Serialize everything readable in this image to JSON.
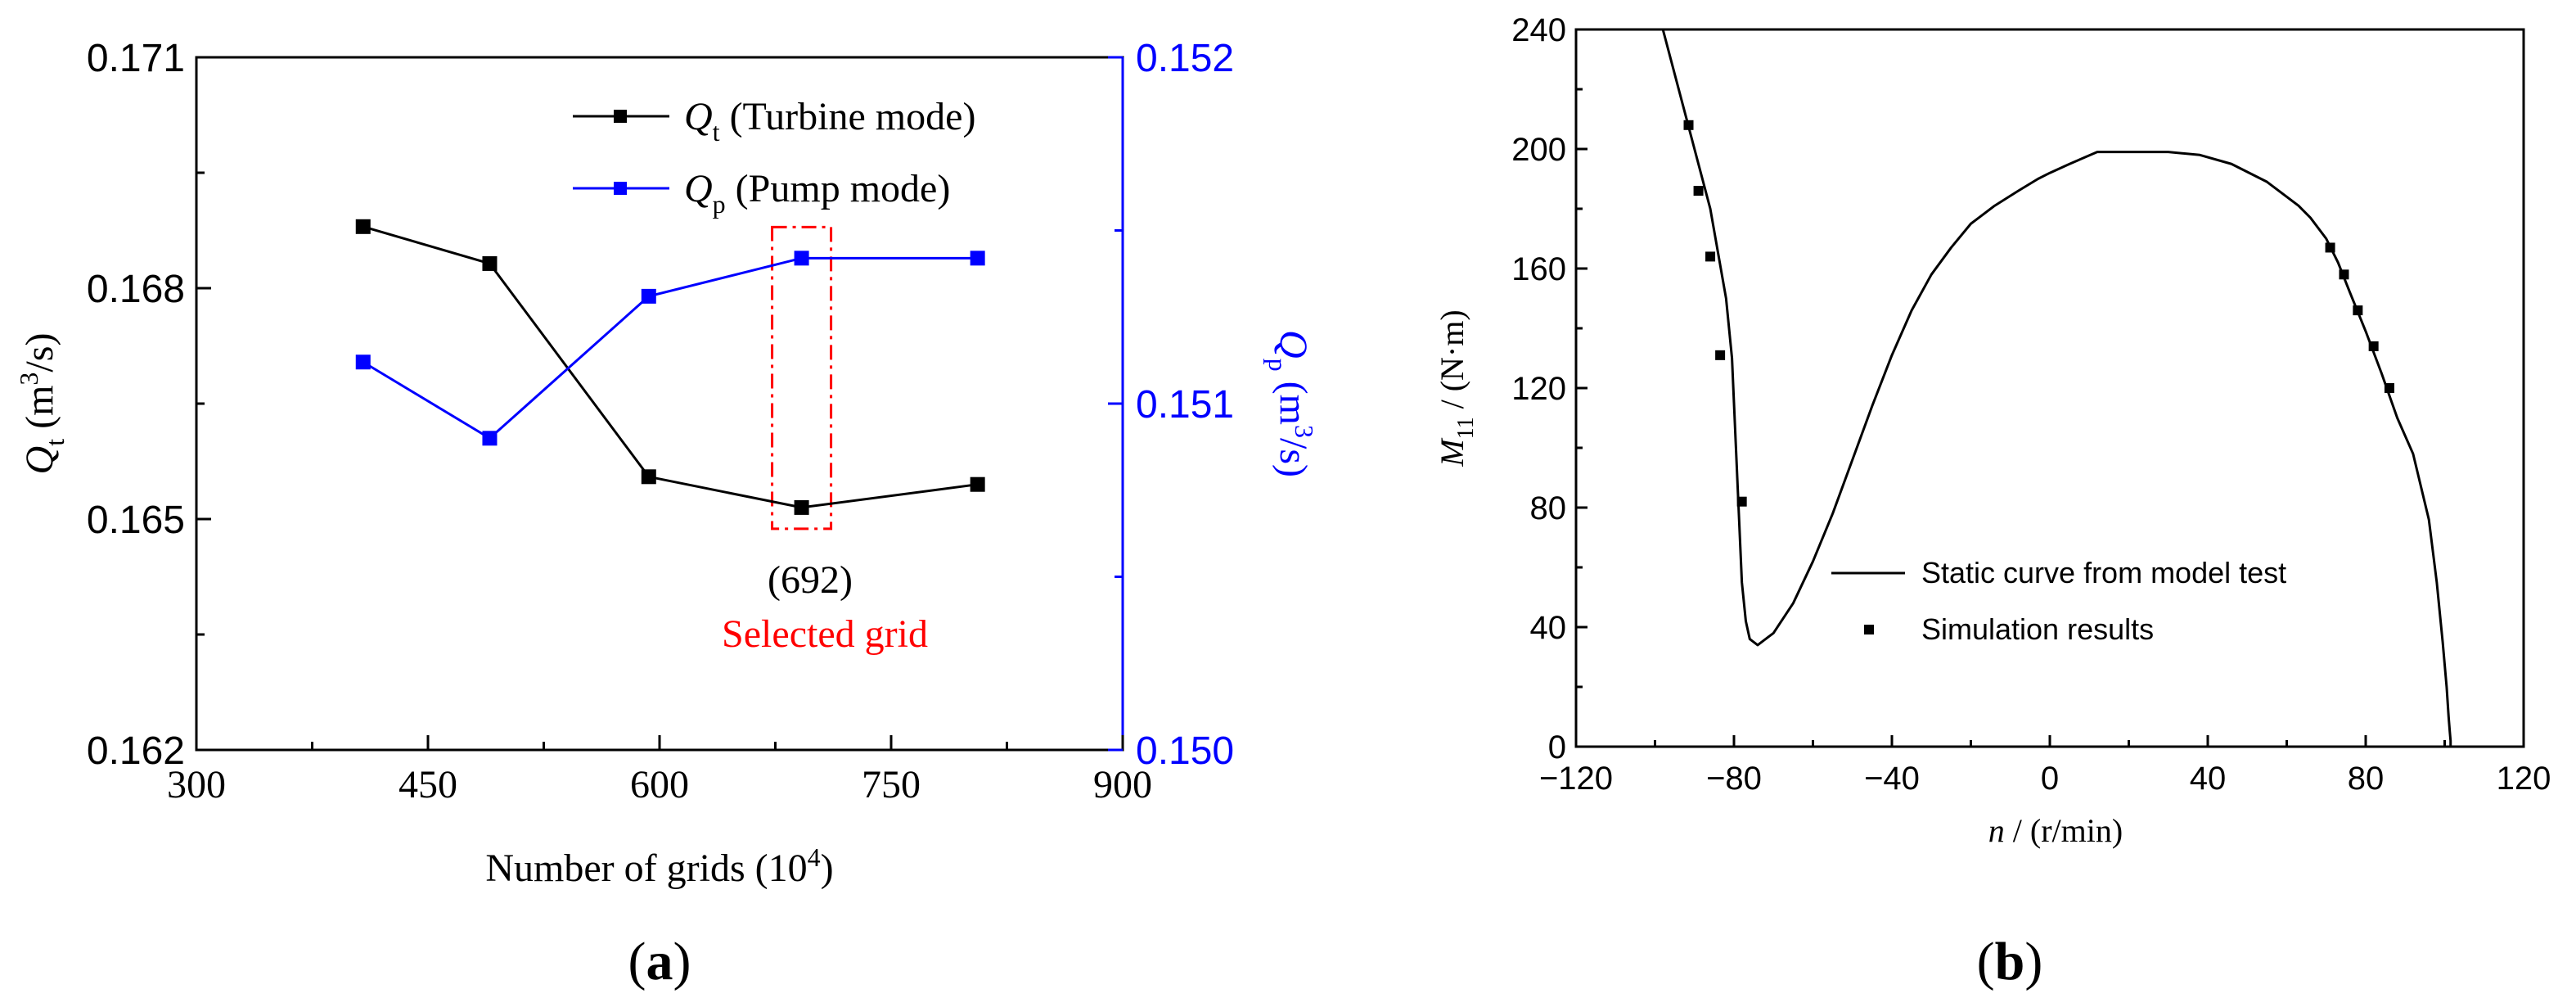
{
  "figure": {
    "panel_a_label": "a",
    "panel_b_label": "b"
  },
  "chart_data": [
    {
      "type": "line",
      "panel": "a",
      "xlabel": "Number of grids (10^4)",
      "xlabel_parts": {
        "main": "Number of grids (10",
        "sup": "4",
        "end": ")"
      },
      "xlim": [
        300,
        900
      ],
      "xticks": [
        300,
        450,
        600,
        750,
        900
      ],
      "ylabel_left": "Qt (m3/s)",
      "ylabel_left_parts": {
        "sym": "Q",
        "sub": "t",
        "unit_pre": " (m",
        "sup": "3",
        "unit_post": "/s)"
      },
      "ylim_left": [
        0.162,
        0.171
      ],
      "yticks_left": [
        "0.162",
        "0.165",
        "0.168",
        "0.171"
      ],
      "ylabel_right": "Qp (m3/s)",
      "ylabel_right_parts": {
        "sym": "Q",
        "sub": "p",
        "unit_pre": " (m",
        "sup": "3",
        "unit_post": "/s)"
      },
      "ylim_right": [
        0.15,
        0.152
      ],
      "yticks_right": [
        "0.150",
        "0.151",
        "0.152"
      ],
      "x": [
        408,
        490,
        593,
        692,
        806
      ],
      "series": [
        {
          "name": "Qt (Turbine mode)",
          "legend_sym": "Q",
          "legend_sub": "t",
          "legend_text": " (Turbine mode)",
          "axis": "left",
          "color": "#000000",
          "values": [
            0.1688,
            0.16832,
            0.16555,
            0.16515,
            0.16545
          ]
        },
        {
          "name": "Qp (Pump mode)",
          "legend_sym": "Q",
          "legend_sub": "p",
          "legend_text": " (Pump mode)",
          "axis": "right",
          "color": "#0000ff",
          "values": [
            0.15112,
            0.1509,
            0.15131,
            0.15142,
            0.15142
          ]
        }
      ],
      "annotations": {
        "highlight_x": 692,
        "value_label": "(692)",
        "selected_label": "Selected grid",
        "highlight_color": "#ff0000"
      }
    },
    {
      "type": "line",
      "panel": "b",
      "xlabel": "n / (r/min)",
      "xlabel_parts": {
        "sym": "n",
        "rest": " / (r/min)"
      },
      "ylabel": "M11 / (N·m)",
      "ylabel_parts": {
        "sym": "M",
        "sub": "11",
        "rest": " / (N·m)"
      },
      "xlim": [
        -120,
        120
      ],
      "ylim": [
        0,
        240
      ],
      "xticks": [
        "−120",
        "−80",
        "−40",
        "0",
        "40",
        "80",
        "120"
      ],
      "yticks": [
        "0",
        "40",
        "80",
        "120",
        "160",
        "200",
        "240"
      ],
      "series": [
        {
          "name": "Static curve from model test",
          "style": "line",
          "color": "#000000",
          "x": [
            -98,
            -95,
            -92,
            -89,
            -86,
            -84,
            -82,
            -80.5,
            -80,
            -79.5,
            -79,
            -78.5,
            -78,
            -77,
            -76,
            -74,
            -70,
            -65,
            -60,
            -55,
            -50,
            -45,
            -40,
            -35,
            -30,
            -25,
            -20,
            -14,
            -8,
            -3,
            0,
            5,
            12,
            20,
            30,
            38,
            46,
            55,
            63,
            66,
            70,
            73,
            76,
            80,
            84,
            88,
            92,
            96,
            98,
            99.5,
            100.5,
            101,
            101.3,
            101.5,
            101.5,
            101.2,
            101
          ],
          "y": [
            240,
            225,
            210,
            195,
            180,
            165,
            150,
            130,
            115,
            100,
            85,
            70,
            55,
            42,
            36,
            34,
            38,
            48,
            62,
            78,
            96,
            114,
            131,
            146,
            158,
            167,
            175,
            181,
            186,
            190,
            192,
            195,
            199,
            199,
            199,
            198,
            195,
            189,
            181,
            177,
            170,
            162,
            152,
            139,
            125,
            110,
            98,
            76,
            55,
            35,
            20,
            10,
            5,
            2,
            0,
            0,
            0
          ]
        },
        {
          "name": "Simulation results",
          "style": "markers",
          "color": "#000000",
          "x": [
            -91.5,
            -89,
            -86,
            -83.5,
            -78,
            71,
            74.5,
            78,
            82,
            86
          ],
          "y": [
            208,
            186,
            164,
            131,
            82,
            167,
            158,
            146,
            134,
            120
          ]
        }
      ]
    }
  ]
}
